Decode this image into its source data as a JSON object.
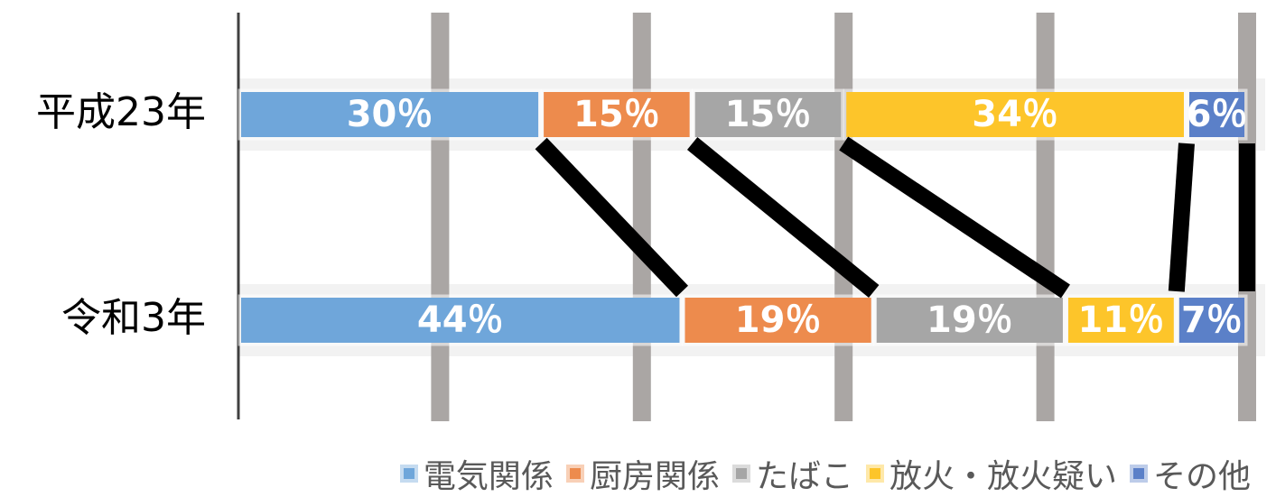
{
  "chart_data": {
    "type": "stacked_bar_horizontal_percent",
    "categories": [
      "平成23年",
      "令和3年"
    ],
    "series": [
      {
        "name": "電気関係",
        "color": "#6fa6da",
        "values": [
          30,
          44
        ],
        "value_labels": [
          "30％",
          "44％"
        ]
      },
      {
        "name": "厨房関係",
        "color": "#ed8b4d",
        "values": [
          15,
          19
        ],
        "value_labels": [
          "15％",
          "19％"
        ]
      },
      {
        "name": "たばこ",
        "color": "#a6a6a6",
        "values": [
          15,
          19
        ],
        "value_labels": [
          "15％",
          "19％"
        ]
      },
      {
        "name": "放火・放火疑い",
        "color": "#fdc52a",
        "values": [
          34,
          11
        ],
        "value_labels": [
          "34％",
          "11％"
        ]
      },
      {
        "name": "その他",
        "color": "#5b80c8",
        "values": [
          6,
          7
        ],
        "value_labels": [
          "6％",
          "7％"
        ]
      }
    ],
    "xlim": [
      0,
      100
    ],
    "xticks": [
      0,
      20,
      40,
      60,
      80,
      100
    ],
    "grid": true,
    "legend": "bottom",
    "connectors": true
  }
}
